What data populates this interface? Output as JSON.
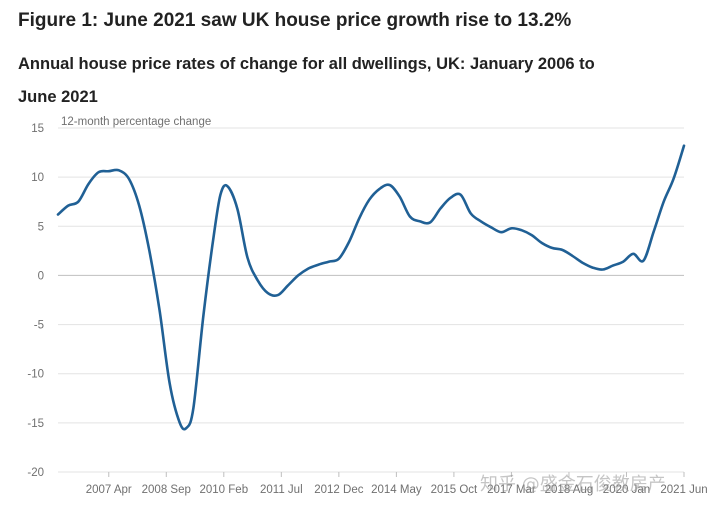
{
  "figure_title": "Figure 1: June 2021 saw UK house price growth rise to 13.2%",
  "watermark": "知乎 @盛金石俊教房产",
  "chart_data": {
    "type": "line",
    "title": "Annual house price rates of change for all dwellings, UK: January 2006 to June 2021",
    "ylabel": "12-month percentage change",
    "xlabel": "",
    "ylim": [
      -20,
      15
    ],
    "yticks": [
      15,
      10,
      5,
      0,
      -5,
      -10,
      -15,
      -20
    ],
    "xlim": [
      "2006-01",
      "2021-06"
    ],
    "xticks": [
      {
        "date": "2007-04",
        "label": "2007 Apr"
      },
      {
        "date": "2008-09",
        "label": "2008 Sep"
      },
      {
        "date": "2010-02",
        "label": "2010 Feb"
      },
      {
        "date": "2011-07",
        "label": "2011 Jul"
      },
      {
        "date": "2012-12",
        "label": "2012 Dec"
      },
      {
        "date": "2014-05",
        "label": "2014 May"
      },
      {
        "date": "2015-10",
        "label": "2015 Oct"
      },
      {
        "date": "2017-03",
        "label": "2017 Mar"
      },
      {
        "date": "2018-08",
        "label": "2018 Aug"
      },
      {
        "date": "2020-01",
        "label": "2020 Jan"
      },
      {
        "date": "2021-06",
        "label": "2021 Jun"
      }
    ],
    "grid": true,
    "line_color": "#206095",
    "series": [
      {
        "x": [
          "2006-01",
          "2006-04",
          "2006-07",
          "2006-10",
          "2007-01",
          "2007-04",
          "2007-07",
          "2007-10",
          "2008-01",
          "2008-04",
          "2008-07",
          "2008-10",
          "2009-01",
          "2009-03",
          "2009-05",
          "2009-08",
          "2009-11",
          "2010-01",
          "2010-03",
          "2010-06",
          "2010-09",
          "2010-12",
          "2011-03",
          "2011-06",
          "2011-09",
          "2011-12",
          "2012-03",
          "2012-06",
          "2012-09",
          "2012-12",
          "2013-03",
          "2013-06",
          "2013-09",
          "2013-12",
          "2014-03",
          "2014-06",
          "2014-09",
          "2014-12",
          "2015-03",
          "2015-06",
          "2015-09",
          "2015-12",
          "2016-03",
          "2016-06",
          "2016-09",
          "2016-12",
          "2017-03",
          "2017-06",
          "2017-09",
          "2017-12",
          "2018-03",
          "2018-06",
          "2018-09",
          "2018-12",
          "2019-03",
          "2019-06",
          "2019-09",
          "2019-12",
          "2020-03",
          "2020-06",
          "2020-09",
          "2020-12",
          "2021-03",
          "2021-06"
        ],
        "y": [
          6.2,
          7.1,
          7.5,
          9.3,
          10.5,
          10.6,
          10.7,
          9.8,
          7.1,
          2.5,
          -3.5,
          -11.0,
          -15.0,
          -15.5,
          -13.5,
          -4.0,
          4.0,
          8.2,
          9.1,
          6.8,
          1.8,
          -0.5,
          -1.8,
          -2.0,
          -1.0,
          0.0,
          0.7,
          1.1,
          1.4,
          1.7,
          3.4,
          5.8,
          7.7,
          8.8,
          9.2,
          8.0,
          6.0,
          5.5,
          5.4,
          6.8,
          7.9,
          8.2,
          6.3,
          5.5,
          4.9,
          4.4,
          4.8,
          4.6,
          4.1,
          3.3,
          2.8,
          2.6,
          2.0,
          1.3,
          0.8,
          0.6,
          1.0,
          1.4,
          2.2,
          1.5,
          4.4,
          7.5,
          9.9,
          13.2
        ]
      }
    ]
  }
}
